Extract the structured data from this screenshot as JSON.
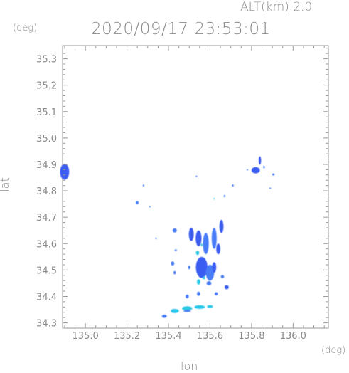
{
  "header": {
    "altitude_text": "ALT(km)  2.0",
    "datetime_text": "2020/09/17  23:53:01"
  },
  "axes": {
    "y_unit": "(deg)",
    "x_unit": "(deg)",
    "xlabel": "lon",
    "ylabel": "lat"
  },
  "chart_data": {
    "type": "heatmap",
    "xlabel": "lon",
    "ylabel": "lat",
    "xlim": [
      134.89,
      136.17
    ],
    "ylim": [
      34.28,
      35.35
    ],
    "x_ticks": [
      135.0,
      135.2,
      135.4,
      135.6,
      135.8,
      136.0
    ],
    "x_tick_labels": [
      "135.0",
      "135.2",
      "135.4",
      "135.6",
      "135.8",
      "136.0"
    ],
    "y_ticks": [
      34.3,
      34.4,
      34.5,
      34.6,
      34.7,
      34.8,
      34.9,
      35.0,
      35.1,
      35.2,
      35.3
    ],
    "y_tick_labels": [
      "34.3",
      "34.4",
      "34.5",
      "34.6",
      "34.7",
      "34.8",
      "34.9",
      "35.0",
      "35.1",
      "35.2",
      "35.3"
    ],
    "grid": false,
    "colors": {
      "strong": "#3a5cf0",
      "medium": "#4a7df7",
      "weak": "#29c7e8"
    },
    "echo_regions": [
      {
        "lon": 134.9,
        "lat": 34.872,
        "rlon": 0.022,
        "rlat": 0.03,
        "level": "strong"
      },
      {
        "lon": 135.25,
        "lat": 34.755,
        "rlon": 0.006,
        "rlat": 0.006,
        "level": "medium"
      },
      {
        "lon": 135.28,
        "lat": 34.82,
        "rlon": 0.003,
        "rlat": 0.004,
        "level": "medium"
      },
      {
        "lon": 135.31,
        "lat": 34.74,
        "rlon": 0.003,
        "rlat": 0.003,
        "level": "medium"
      },
      {
        "lon": 135.43,
        "lat": 34.65,
        "rlon": 0.01,
        "rlat": 0.008,
        "level": "medium"
      },
      {
        "lon": 135.42,
        "lat": 34.525,
        "rlon": 0.008,
        "rlat": 0.008,
        "level": "medium"
      },
      {
        "lon": 135.43,
        "lat": 34.49,
        "rlon": 0.006,
        "rlat": 0.006,
        "level": "medium"
      },
      {
        "lon": 135.435,
        "lat": 34.575,
        "rlon": 0.005,
        "rlat": 0.004,
        "level": "medium"
      },
      {
        "lon": 135.51,
        "lat": 34.635,
        "rlon": 0.012,
        "rlat": 0.025,
        "level": "strong"
      },
      {
        "lon": 135.545,
        "lat": 34.62,
        "rlon": 0.014,
        "rlat": 0.03,
        "level": "strong"
      },
      {
        "lon": 135.58,
        "lat": 34.6,
        "rlon": 0.014,
        "rlat": 0.04,
        "level": "medium"
      },
      {
        "lon": 135.62,
        "lat": 34.62,
        "rlon": 0.012,
        "rlat": 0.04,
        "level": "medium"
      },
      {
        "lon": 135.655,
        "lat": 34.665,
        "rlon": 0.01,
        "rlat": 0.025,
        "level": "strong"
      },
      {
        "lon": 135.64,
        "lat": 34.58,
        "rlon": 0.01,
        "rlat": 0.02,
        "level": "strong"
      },
      {
        "lon": 135.56,
        "lat": 34.51,
        "rlon": 0.028,
        "rlat": 0.04,
        "level": "strong"
      },
      {
        "lon": 135.6,
        "lat": 34.49,
        "rlon": 0.02,
        "rlat": 0.03,
        "level": "medium"
      },
      {
        "lon": 135.62,
        "lat": 34.51,
        "rlon": 0.01,
        "rlat": 0.02,
        "level": "strong"
      },
      {
        "lon": 135.545,
        "lat": 34.455,
        "rlon": 0.008,
        "rlat": 0.01,
        "level": "weak"
      },
      {
        "lon": 135.595,
        "lat": 34.45,
        "rlon": 0.012,
        "rlat": 0.008,
        "level": "medium"
      },
      {
        "lon": 135.66,
        "lat": 34.475,
        "rlon": 0.008,
        "rlat": 0.006,
        "level": "medium"
      },
      {
        "lon": 135.68,
        "lat": 34.435,
        "rlon": 0.01,
        "rlat": 0.008,
        "level": "strong"
      },
      {
        "lon": 135.63,
        "lat": 34.41,
        "rlon": 0.008,
        "rlat": 0.006,
        "level": "medium"
      },
      {
        "lon": 135.545,
        "lat": 34.41,
        "rlon": 0.008,
        "rlat": 0.008,
        "level": "medium"
      },
      {
        "lon": 135.49,
        "lat": 34.4,
        "rlon": 0.008,
        "rlat": 0.007,
        "level": "medium"
      },
      {
        "lon": 135.54,
        "lat": 34.565,
        "rlon": 0.008,
        "rlat": 0.008,
        "level": "weak"
      },
      {
        "lon": 135.5,
        "lat": 34.51,
        "rlon": 0.006,
        "rlat": 0.007,
        "level": "medium"
      },
      {
        "lon": 135.67,
        "lat": 34.78,
        "rlon": 0.004,
        "rlat": 0.004,
        "level": "medium"
      },
      {
        "lon": 135.71,
        "lat": 34.82,
        "rlon": 0.004,
        "rlat": 0.004,
        "level": "medium"
      },
      {
        "lon": 135.62,
        "lat": 34.77,
        "rlon": 0.003,
        "rlat": 0.003,
        "level": "weak"
      },
      {
        "lon": 135.82,
        "lat": 34.878,
        "rlon": 0.02,
        "rlat": 0.012,
        "level": "strong"
      },
      {
        "lon": 135.84,
        "lat": 34.915,
        "rlon": 0.006,
        "rlat": 0.016,
        "level": "strong"
      },
      {
        "lon": 135.86,
        "lat": 34.89,
        "rlon": 0.004,
        "rlat": 0.005,
        "level": "medium"
      },
      {
        "lon": 135.905,
        "lat": 34.862,
        "rlon": 0.006,
        "rlat": 0.004,
        "level": "medium"
      },
      {
        "lon": 135.89,
        "lat": 34.81,
        "rlon": 0.002,
        "rlat": 0.003,
        "level": "medium"
      },
      {
        "lon": 135.78,
        "lat": 34.88,
        "rlon": 0.003,
        "rlat": 0.003,
        "level": "medium"
      },
      {
        "lon": 135.535,
        "lat": 34.855,
        "rlon": 0.002,
        "rlat": 0.002,
        "level": "medium"
      },
      {
        "lon": 135.38,
        "lat": 34.325,
        "rlon": 0.012,
        "rlat": 0.006,
        "level": "medium"
      },
      {
        "lon": 135.43,
        "lat": 34.345,
        "rlon": 0.02,
        "rlat": 0.008,
        "level": "weak"
      },
      {
        "lon": 135.49,
        "lat": 34.355,
        "rlon": 0.025,
        "rlat": 0.008,
        "level": "weak"
      },
      {
        "lon": 135.55,
        "lat": 34.36,
        "rlon": 0.025,
        "rlat": 0.007,
        "level": "weak"
      },
      {
        "lon": 135.6,
        "lat": 34.362,
        "rlon": 0.014,
        "rlat": 0.005,
        "level": "weak"
      },
      {
        "lon": 135.49,
        "lat": 34.345,
        "rlon": 0.018,
        "rlat": 0.004,
        "level": "medium"
      },
      {
        "lon": 135.56,
        "lat": 34.595,
        "rlon": 0.004,
        "rlat": 0.005,
        "level": "weak"
      },
      {
        "lon": 135.57,
        "lat": 34.47,
        "rlon": 0.006,
        "rlat": 0.005,
        "level": "weak"
      },
      {
        "lon": 135.34,
        "lat": 34.62,
        "rlon": 0.003,
        "rlat": 0.003,
        "level": "medium"
      }
    ]
  }
}
